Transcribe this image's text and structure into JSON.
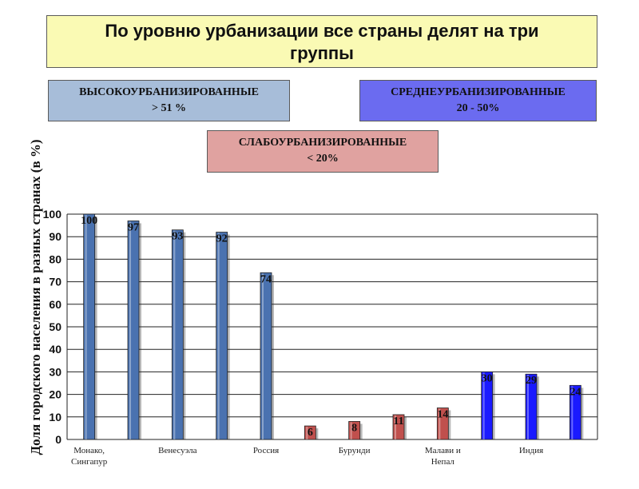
{
  "title": {
    "line1": "По уровню урбанизации все страны делят на три",
    "line2": "группы"
  },
  "categories_legend": {
    "high": {
      "name": "ВЫСОКОУРБАНИЗИРОВАННЫЕ",
      "range": "> 51 %",
      "color": "#a7bdd9"
    },
    "mid": {
      "name": "СРЕДНЕУРБАНИЗИРОВАННЫЕ",
      "range": "20 - 50%",
      "color": "#6b6bf0"
    },
    "low": {
      "name": "СЛАБОУРБАНИЗИРОВАННЫЕ",
      "range": "< 20%",
      "color": "#e0a2a0"
    }
  },
  "chart_data": {
    "type": "bar",
    "ylabel": "Доля городского населения в разных странах (в %)",
    "xlabel": "",
    "ylim": [
      0,
      100
    ],
    "yticks": [
      "0",
      "10",
      "20",
      "30",
      "40",
      "50",
      "60",
      "70",
      "80",
      "90",
      "100"
    ],
    "grid": true,
    "x_tick_labels": [
      "Монако,\nСингапур",
      "Венесуэла",
      "Россия",
      "Бурунди",
      "Малави и\nНепал",
      "Индия"
    ],
    "values": [
      100,
      97,
      93,
      92,
      74,
      6,
      8,
      11,
      14,
      30,
      29,
      24
    ],
    "data_labels": [
      "100",
      "97",
      "93",
      "92",
      "74",
      "6",
      "8",
      "11",
      "14",
      "30",
      "29",
      "24"
    ],
    "groups": [
      "high",
      "high",
      "high",
      "high",
      "high",
      "low",
      "low",
      "low",
      "low",
      "mid",
      "mid",
      "mid"
    ],
    "colors": {
      "high": "#4a72b0",
      "low": "#c0504d",
      "mid": "#1a1aff"
    }
  }
}
